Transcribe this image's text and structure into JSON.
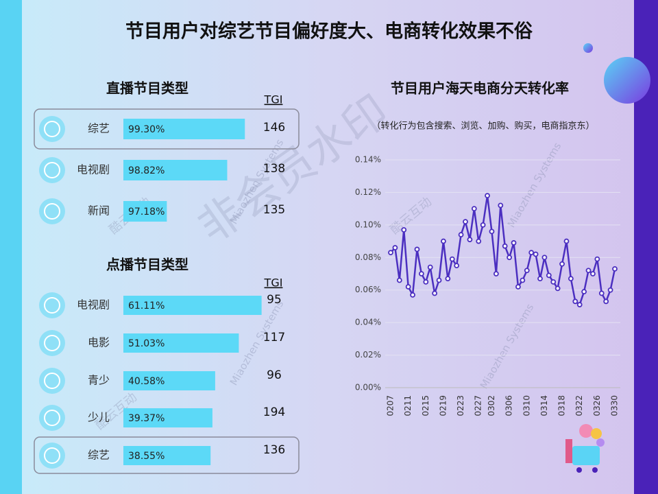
{
  "title": "节目用户对综艺节目偏好度大、电商转化效果不俗",
  "watermarks": [
    "非会员水印",
    "Miaozhen Systems",
    "酷云互动"
  ],
  "panels": [
    {
      "title": "直播节目类型",
      "tgi_header": "TGI",
      "xlim": [
        96,
        99.5
      ],
      "items": [
        {
          "name": "综艺",
          "value": 99.3,
          "value_label": "99.30%",
          "tgi": 146
        },
        {
          "name": "电视剧",
          "value": 98.82,
          "value_label": "98.82%",
          "tgi": 138
        },
        {
          "name": "新闻",
          "value": 97.18,
          "value_label": "97.18%",
          "tgi": 135
        }
      ]
    },
    {
      "title": "点播节目类型",
      "tgi_header": "TGI",
      "xlim": [
        0,
        60
      ],
      "items": [
        {
          "name": "电视剧",
          "value": 61.11,
          "value_label": "61.11%",
          "tgi": 95
        },
        {
          "name": "电影",
          "value": 51.03,
          "value_label": "51.03%",
          "tgi": 117
        },
        {
          "name": "青少",
          "value": 40.58,
          "value_label": "40.58%",
          "tgi": 96
        },
        {
          "name": "少儿",
          "value": 39.37,
          "value_label": "39.37%",
          "tgi": 194
        },
        {
          "name": "综艺",
          "value": 38.55,
          "value_label": "38.55%",
          "tgi": 136
        }
      ]
    }
  ],
  "chart_data": {
    "type": "line",
    "title": "节目用户海天电商分天转化率",
    "subtitle": "（转化行为包含搜索、浏览、加购、购买，电商指京东）",
    "categories": [
      "0207",
      null,
      null,
      null,
      "0211",
      null,
      null,
      null,
      "0215",
      null,
      null,
      null,
      "0219",
      null,
      null,
      null,
      "0223",
      null,
      null,
      null,
      "0227",
      null,
      null,
      "0302",
      null,
      null,
      null,
      "0306",
      null,
      null,
      null,
      "0310",
      null,
      null,
      null,
      "0314",
      null,
      null,
      null,
      "0318",
      null,
      null,
      null,
      "0322",
      null,
      null,
      null,
      "0326",
      null,
      null,
      null,
      "0330"
    ],
    "values": [
      0.083,
      0.086,
      0.066,
      0.097,
      0.062,
      0.057,
      0.085,
      0.07,
      0.065,
      0.074,
      0.058,
      0.066,
      0.09,
      0.067,
      0.079,
      0.075,
      0.094,
      0.102,
      0.091,
      0.11,
      0.09,
      0.1,
      0.118,
      0.096,
      0.07,
      0.112,
      0.087,
      0.08,
      0.089,
      0.062,
      0.066,
      0.072,
      0.083,
      0.082,
      0.067,
      0.08,
      0.069,
      0.065,
      0.061,
      0.076,
      0.09,
      0.067,
      0.053,
      0.051,
      0.059,
      0.072,
      0.07,
      0.079,
      0.058,
      0.053,
      0.06,
      0.073
    ],
    "color": "#4b2fc0",
    "ylim": [
      0,
      0.14
    ],
    "yticks": [
      {
        "value": 0,
        "label": "0.00%"
      },
      {
        "value": 0.02,
        "label": "0.02%"
      },
      {
        "value": 0.04,
        "label": "0.04%"
      },
      {
        "value": 0.06,
        "label": "0.06%"
      },
      {
        "value": 0.08,
        "label": "0.08%"
      },
      {
        "value": 0.1,
        "label": "0.10%"
      },
      {
        "value": 0.12,
        "label": "0.12%"
      },
      {
        "value": 0.14,
        "label": "0.14%"
      }
    ],
    "grid": true
  }
}
